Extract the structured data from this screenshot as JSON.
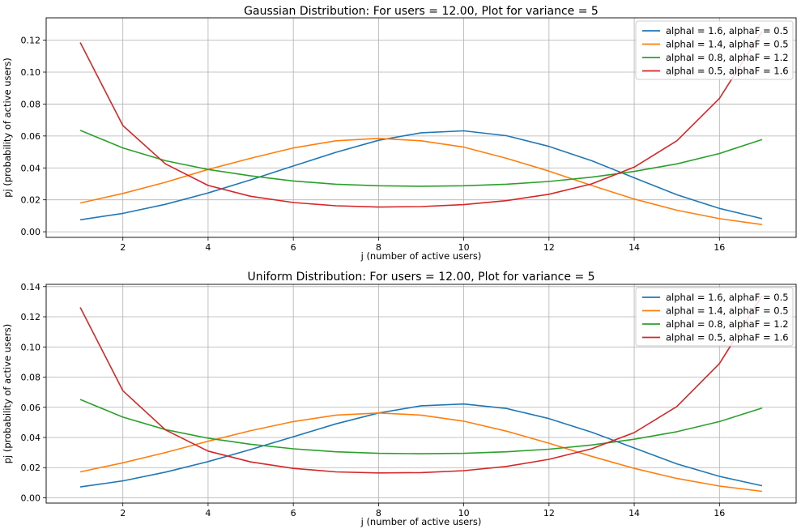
{
  "chart_data": [
    {
      "type": "line",
      "title": "Gaussian Distribution: For users = 12.00, Plot for variance = 5",
      "xlabel": "j (number of active users)",
      "ylabel": "pj (probability of active users)",
      "xlim": [
        0.2,
        17.8
      ],
      "ylim": [
        -0.0035,
        0.134
      ],
      "xticks": [
        2,
        4,
        6,
        8,
        10,
        12,
        14,
        16
      ],
      "yticks": [
        0.0,
        0.02,
        0.04,
        0.06,
        0.08,
        0.1,
        0.12
      ],
      "grid": true,
      "legend_position": "top-right",
      "x": [
        1,
        2,
        3,
        4,
        5,
        6,
        7,
        8,
        9,
        10,
        11,
        12,
        13,
        14,
        15,
        16,
        17
      ],
      "series": [
        {
          "name": "alphaI = 1.6, alphaF = 0.5",
          "color": "#1f77b4",
          "values": [
            0.0075,
            0.0115,
            0.0172,
            0.0243,
            0.0325,
            0.0412,
            0.0498,
            0.0573,
            0.062,
            0.0632,
            0.0602,
            0.0535,
            0.0445,
            0.0338,
            0.0232,
            0.0146,
            0.0082
          ]
        },
        {
          "name": "alphaI = 1.4, alphaF = 0.5",
          "color": "#ff7f0e",
          "values": [
            0.018,
            0.024,
            0.031,
            0.039,
            0.046,
            0.0525,
            0.057,
            0.0585,
            0.057,
            0.053,
            0.046,
            0.038,
            0.029,
            0.0205,
            0.0135,
            0.0082,
            0.0045
          ]
        },
        {
          "name": "alphaI = 0.8, alphaF = 1.2",
          "color": "#2ca02c",
          "values": [
            0.0635,
            0.0525,
            0.0445,
            0.039,
            0.035,
            0.0318,
            0.0298,
            0.0288,
            0.0285,
            0.0288,
            0.0298,
            0.0315,
            0.0342,
            0.0378,
            0.0425,
            0.049,
            0.0578
          ]
        },
        {
          "name": "alphaI = 0.5, alphaF = 1.6",
          "color": "#d62728",
          "values": [
            0.1185,
            0.0665,
            0.0425,
            0.029,
            0.0222,
            0.0183,
            0.0163,
            0.0155,
            0.0158,
            0.017,
            0.0195,
            0.0235,
            0.03,
            0.0405,
            0.057,
            0.0835,
            0.1255
          ]
        }
      ]
    },
    {
      "type": "line",
      "title": "Uniform Distribution: For users = 12.00, Plot for variance = 5",
      "xlabel": "j (number of active users)",
      "ylabel": "pj (probability of active users)",
      "xlim": [
        0.2,
        17.8
      ],
      "ylim": [
        -0.0035,
        0.1415
      ],
      "xticks": [
        2,
        4,
        6,
        8,
        10,
        12,
        14,
        16
      ],
      "yticks": [
        0.0,
        0.02,
        0.04,
        0.06,
        0.08,
        0.1,
        0.12,
        0.14
      ],
      "grid": true,
      "legend_position": "top-right",
      "x": [
        1,
        2,
        3,
        4,
        5,
        6,
        7,
        8,
        9,
        10,
        11,
        12,
        13,
        14,
        15,
        16,
        17
      ],
      "series": [
        {
          "name": "alphaI = 1.6, alphaF = 0.5",
          "color": "#1f77b4",
          "values": [
            0.0072,
            0.0112,
            0.017,
            0.024,
            0.032,
            0.0405,
            0.049,
            0.0562,
            0.061,
            0.0622,
            0.0592,
            0.0525,
            0.0435,
            0.033,
            0.0225,
            0.0142,
            0.008
          ]
        },
        {
          "name": "alphaI = 1.4, alphaF = 0.5",
          "color": "#ff7f0e",
          "values": [
            0.0172,
            0.0232,
            0.03,
            0.0375,
            0.0445,
            0.0505,
            0.0548,
            0.0562,
            0.0548,
            0.0508,
            0.0442,
            0.0362,
            0.0275,
            0.0195,
            0.0128,
            0.0078,
            0.0043
          ]
        },
        {
          "name": "alphaI = 0.8, alphaF = 1.2",
          "color": "#2ca02c",
          "values": [
            0.0652,
            0.0535,
            0.0452,
            0.0395,
            0.0355,
            0.0325,
            0.0305,
            0.0295,
            0.0292,
            0.0295,
            0.0305,
            0.0322,
            0.035,
            0.0388,
            0.0438,
            0.0505,
            0.0595
          ]
        },
        {
          "name": "alphaI = 0.5, alphaF = 1.6",
          "color": "#d62728",
          "values": [
            0.1262,
            0.071,
            0.045,
            0.031,
            0.0238,
            0.0195,
            0.0172,
            0.0165,
            0.0167,
            0.018,
            0.0208,
            0.0255,
            0.0325,
            0.0432,
            0.0605,
            0.089,
            0.134
          ]
        }
      ]
    }
  ]
}
